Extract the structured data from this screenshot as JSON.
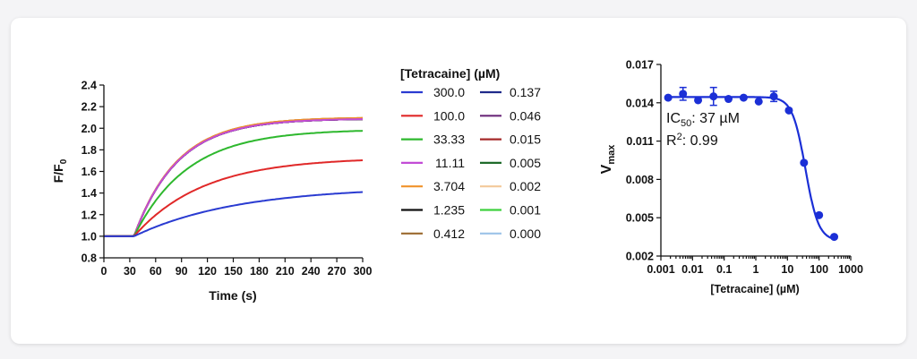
{
  "chart_data": [
    {
      "type": "line",
      "xlabel": "Time (s)",
      "ylabel": "F/F0",
      "xlim": [
        0,
        300
      ],
      "ylim": [
        0.8,
        2.4
      ],
      "xticks": [
        "0",
        "30",
        "60",
        "90",
        "120",
        "150",
        "180",
        "210",
        "240",
        "270",
        "300"
      ],
      "yticks": [
        "0.8",
        "1.0",
        "1.2",
        "1.4",
        "1.6",
        "1.8",
        "2.0",
        "2.2",
        "2.4"
      ],
      "legend_title": "[Tetracaine] (µM)",
      "series": [
        {
          "name": "300.0",
          "color": "#2a3bd1",
          "start": 1.0,
          "plateau": 1.46,
          "tau": 120
        },
        {
          "name": "100.0",
          "color": "#e02828",
          "start": 1.0,
          "plateau": 1.73,
          "tau": 80
        },
        {
          "name": "33.33",
          "color": "#2eb82e",
          "start": 1.0,
          "plateau": 1.99,
          "tau": 62
        },
        {
          "name": "11.11",
          "color": "#c24cd6",
          "start": 1.0,
          "plateau": 2.09,
          "tau": 50
        },
        {
          "name": "3.704",
          "color": "#f0922a",
          "start": 1.0,
          "plateau": 2.1,
          "tau": 50
        },
        {
          "name": "1.235",
          "color": "#111111",
          "start": 1.0,
          "plateau": 2.09,
          "tau": 50
        },
        {
          "name": "0.412",
          "color": "#9b6a2f",
          "start": 1.0,
          "plateau": 2.1,
          "tau": 50
        },
        {
          "name": "0.137",
          "color": "#1f2a8a",
          "start": 1.0,
          "plateau": 2.09,
          "tau": 50
        },
        {
          "name": "0.046",
          "color": "#6b2a7a",
          "start": 1.0,
          "plateau": 2.09,
          "tau": 50
        },
        {
          "name": "0.015",
          "color": "#a52a2a",
          "start": 1.0,
          "plateau": 2.09,
          "tau": 50
        },
        {
          "name": "0.005",
          "color": "#1e6b2a",
          "start": 1.0,
          "plateau": 2.09,
          "tau": 50
        },
        {
          "name": "0.002",
          "color": "#f3c99a",
          "start": 1.0,
          "plateau": 2.1,
          "tau": 50
        },
        {
          "name": "0.001",
          "color": "#3fd13f",
          "start": 1.0,
          "plateau": 2.09,
          "tau": 50
        },
        {
          "name": "0.000",
          "color": "#9cc3e8",
          "start": 1.0,
          "plateau": 2.09,
          "tau": 50
        }
      ],
      "onset_time": 35
    },
    {
      "type": "scatter",
      "xlabel": "[Tetracaine] (µM)",
      "ylabel": "V",
      "ylabel_sub": "max",
      "xscale": "log",
      "xlim": [
        0.001,
        1000
      ],
      "ylim": [
        0.002,
        0.017
      ],
      "xticks": [
        "0.001",
        "0.01",
        "0.1",
        "1",
        "10",
        "100",
        "1000"
      ],
      "yticks": [
        "0.002",
        "0.005",
        "0.008",
        "0.011",
        "0.014",
        "0.017"
      ],
      "color": "#1b2fd6",
      "points": [
        {
          "x": 0.0017,
          "y": 0.0144,
          "err": 0.0001
        },
        {
          "x": 0.005,
          "y": 0.0147,
          "err": 0.0005
        },
        {
          "x": 0.015,
          "y": 0.0142,
          "err": 0.0001
        },
        {
          "x": 0.046,
          "y": 0.0145,
          "err": 0.0007
        },
        {
          "x": 0.137,
          "y": 0.0143,
          "err": 0.0001
        },
        {
          "x": 0.412,
          "y": 0.0144,
          "err": 0.0001
        },
        {
          "x": 1.235,
          "y": 0.0141,
          "err": 0.0001
        },
        {
          "x": 3.704,
          "y": 0.0145,
          "err": 0.0004
        },
        {
          "x": 11.11,
          "y": 0.0134,
          "err": 0.0001
        },
        {
          "x": 33.33,
          "y": 0.0093,
          "err": 0.0001
        },
        {
          "x": 100.0,
          "y": 0.0052,
          "err": 0.0001
        },
        {
          "x": 300.0,
          "y": 0.0035,
          "err": 0.0001
        }
      ],
      "fit": {
        "top": 0.01445,
        "bottom": 0.0032,
        "ic50": 37,
        "hill": 2.1
      },
      "annotations": {
        "ic50_prefix": "IC",
        "ic50_sub": "50",
        "ic50_value": ": 37 µM",
        "r2_prefix": "R",
        "r2_sup": "2",
        "r2_value": ": 0.99"
      }
    }
  ]
}
